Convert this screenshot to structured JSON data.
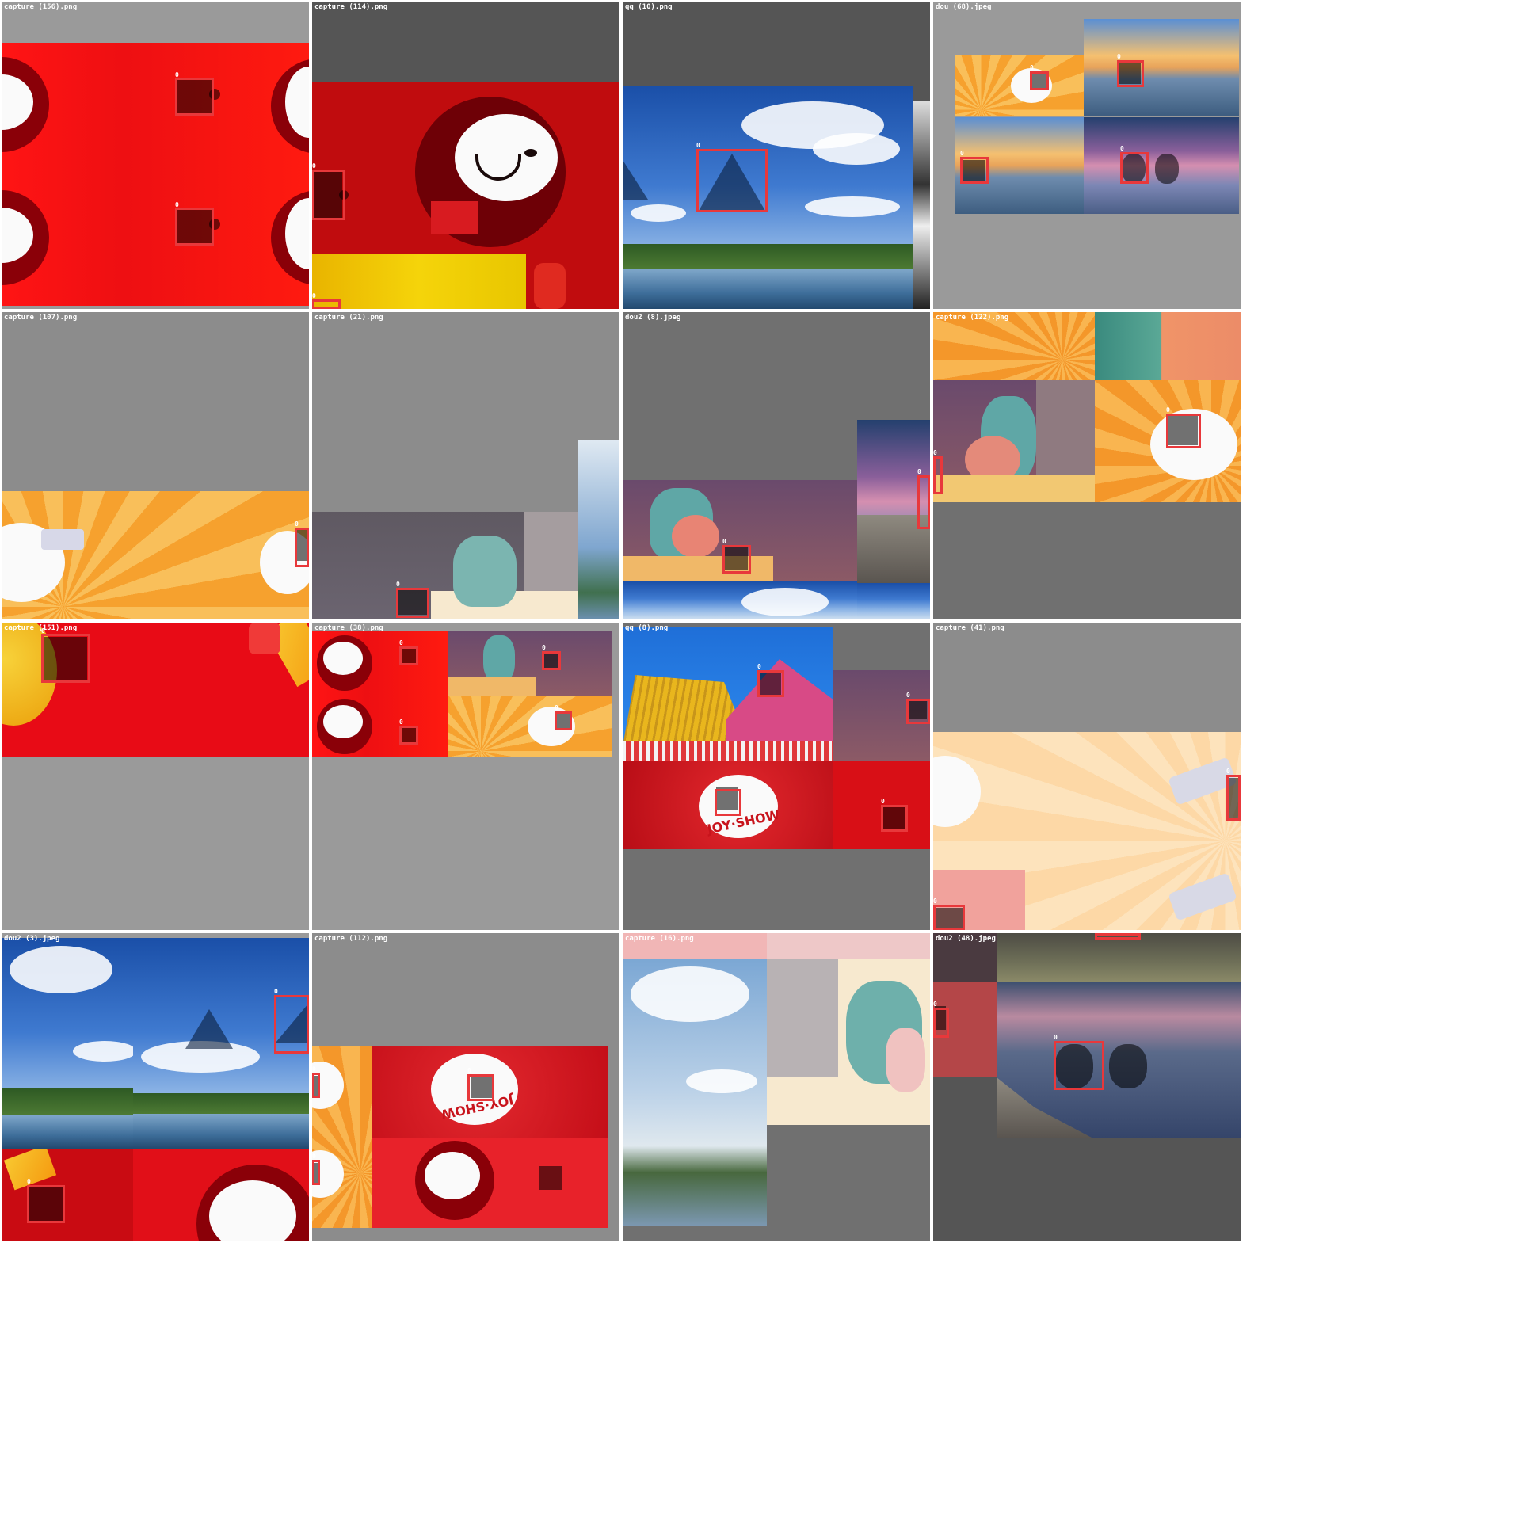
{
  "grid": {
    "rows": 4,
    "cols": 4,
    "tiles": [
      {
        "label": "capture (156).png"
      },
      {
        "label": "capture (114).png"
      },
      {
        "label": "qq (10).png"
      },
      {
        "label": "dou (68).jpeg"
      },
      {
        "label": "capture (107).png"
      },
      {
        "label": "capture (21).png"
      },
      {
        "label": "dou2 (8).jpeg"
      },
      {
        "label": "capture (122).png"
      },
      {
        "label": "capture (151).png"
      },
      {
        "label": "capture (38).png"
      },
      {
        "label": "qq (8).png"
      },
      {
        "label": "capture (41).png"
      },
      {
        "label": "dou2 (3).jpeg"
      },
      {
        "label": "capture (112).png"
      },
      {
        "label": "capture (16).png"
      },
      {
        "label": "dou2 (48).jpeg"
      }
    ]
  },
  "box_tag": "0",
  "logo_text": "JOY·SHOW",
  "colors": {
    "box_border": "#e8383b",
    "gray_light": "#9a9a9a",
    "gray_mid": "#8c8c8c",
    "gray_dark": "#555555"
  }
}
